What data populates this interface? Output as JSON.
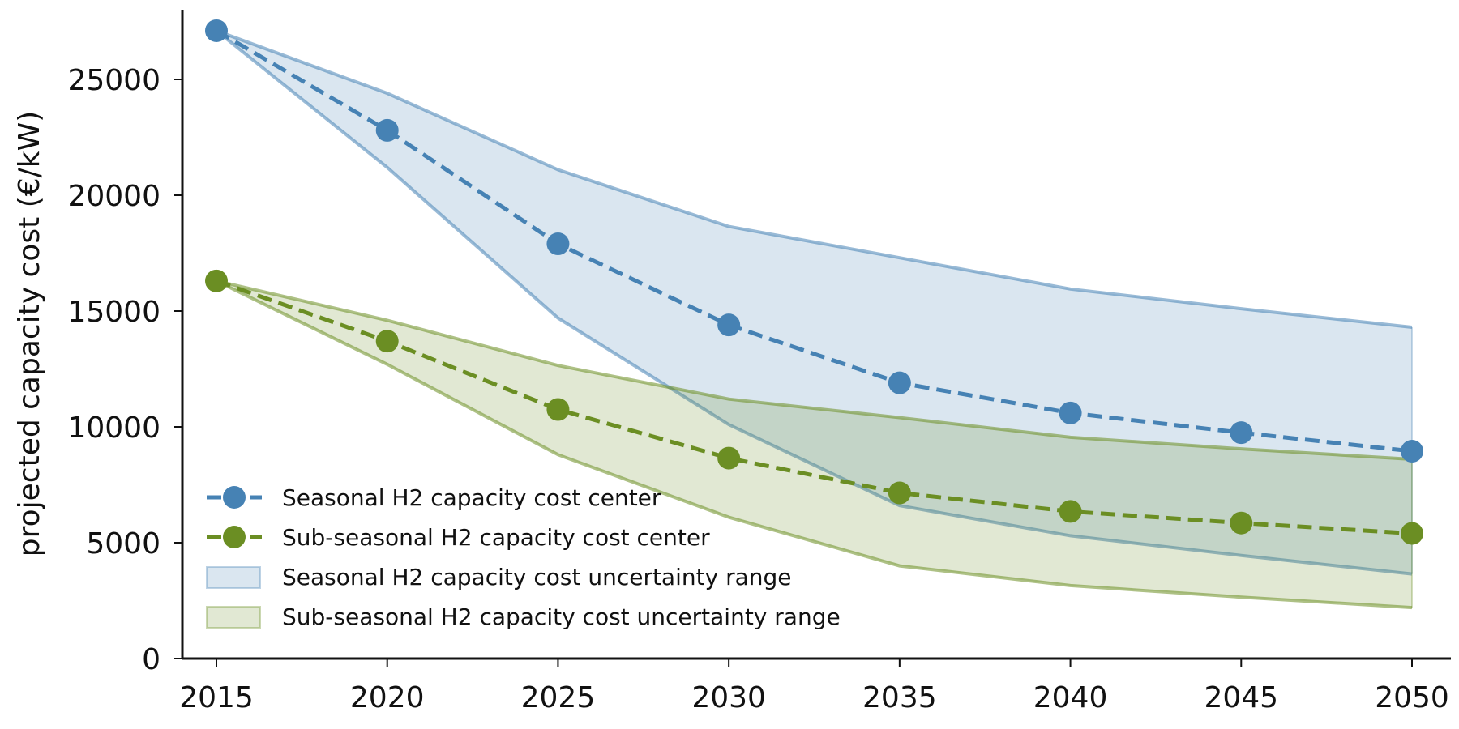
{
  "chart_data": {
    "type": "line",
    "title": "",
    "xlabel": "",
    "ylabel": "projected capacity cost (€/kW)",
    "x": [
      2015,
      2020,
      2025,
      2030,
      2035,
      2040,
      2045,
      2050
    ],
    "xlim": [
      2014,
      2051
    ],
    "ylim": [
      0,
      28000
    ],
    "yticks": [
      0,
      5000,
      10000,
      15000,
      20000,
      25000
    ],
    "grid": false,
    "legend_position": "bottom-left",
    "series": [
      {
        "name": "Seasonal H2 capacity cost center",
        "kind": "line",
        "color": "#4682b4",
        "values": [
          27100,
          22800,
          17900,
          14400,
          11900,
          10600,
          9750,
          8950
        ]
      },
      {
        "name": "Sub-seasonal H2 capacity cost center",
        "kind": "line",
        "color": "#6b8e23",
        "values": [
          16300,
          13700,
          10750,
          8650,
          7150,
          6350,
          5850,
          5400
        ]
      }
    ],
    "ranges": [
      {
        "name": "Seasonal H2 capacity cost uncertainty range",
        "kind": "band",
        "color": "#4682b4",
        "upper": [
          27100,
          24400,
          21100,
          18650,
          17300,
          15950,
          15100,
          14300
        ],
        "lower": [
          27100,
          21200,
          14700,
          10100,
          6600,
          5300,
          4450,
          3650
        ]
      },
      {
        "name": "Sub-seasonal H2 capacity cost uncertainty range",
        "kind": "band",
        "color": "#6b8e23",
        "upper": [
          16300,
          14600,
          12650,
          11200,
          10400,
          9550,
          9050,
          8600
        ],
        "lower": [
          16300,
          12700,
          8800,
          6100,
          4000,
          3150,
          2650,
          2200
        ]
      }
    ]
  }
}
